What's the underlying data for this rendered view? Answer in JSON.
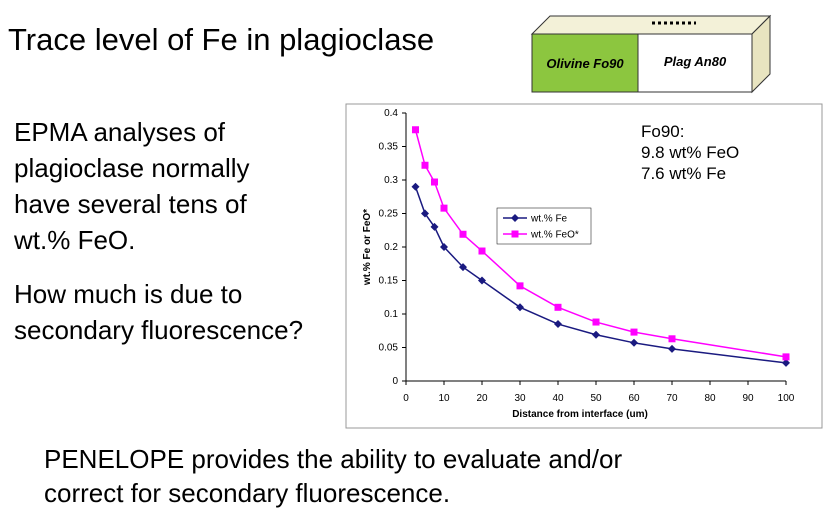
{
  "title": "Trace level of Fe in plagioclase",
  "diagram": {
    "left_label": "Olivine Fo90",
    "right_label": "Plag An80"
  },
  "paragraph1": [
    "EPMA analyses of",
    "plagioclase normally",
    "have several tens of",
    "wt.% FeO."
  ],
  "paragraph2": [
    "How much is due to",
    "secondary fluorescence?"
  ],
  "paragraph3": [
    "PENELOPE provides the ability to evaluate and/or",
    "correct for secondary fluorescence."
  ],
  "chart_data": {
    "type": "line",
    "xlabel": "Distance from interface (um)",
    "ylabel": "wt.% Fe or FeO*",
    "annotation": [
      "Fo90:",
      "9.8 wt% FeO",
      "7.6 wt% Fe"
    ],
    "x": [
      2.5,
      5,
      7.5,
      10,
      15,
      20,
      30,
      40,
      50,
      60,
      70,
      100
    ],
    "series": [
      {
        "name": "wt.% Fe",
        "color": "#1a1a80",
        "marker": "diamond",
        "values": [
          0.29,
          0.25,
          0.23,
          0.2,
          0.17,
          0.15,
          0.11,
          0.085,
          0.069,
          0.057,
          0.048,
          0.027
        ]
      },
      {
        "name": "wt.% FeO*",
        "color": "#ff00ff",
        "marker": "square",
        "values": [
          0.375,
          0.322,
          0.297,
          0.258,
          0.219,
          0.194,
          0.142,
          0.11,
          0.088,
          0.073,
          0.063,
          0.036
        ]
      }
    ],
    "xlim": [
      0,
      100
    ],
    "xticks": [
      0,
      10,
      20,
      30,
      40,
      50,
      60,
      70,
      80,
      90,
      100
    ],
    "ylim": [
      0,
      0.4
    ],
    "yticks": [
      0,
      0.05,
      0.1,
      0.15,
      0.2,
      0.25,
      0.3,
      0.35,
      0.4
    ],
    "grid": false,
    "legend": "center"
  }
}
